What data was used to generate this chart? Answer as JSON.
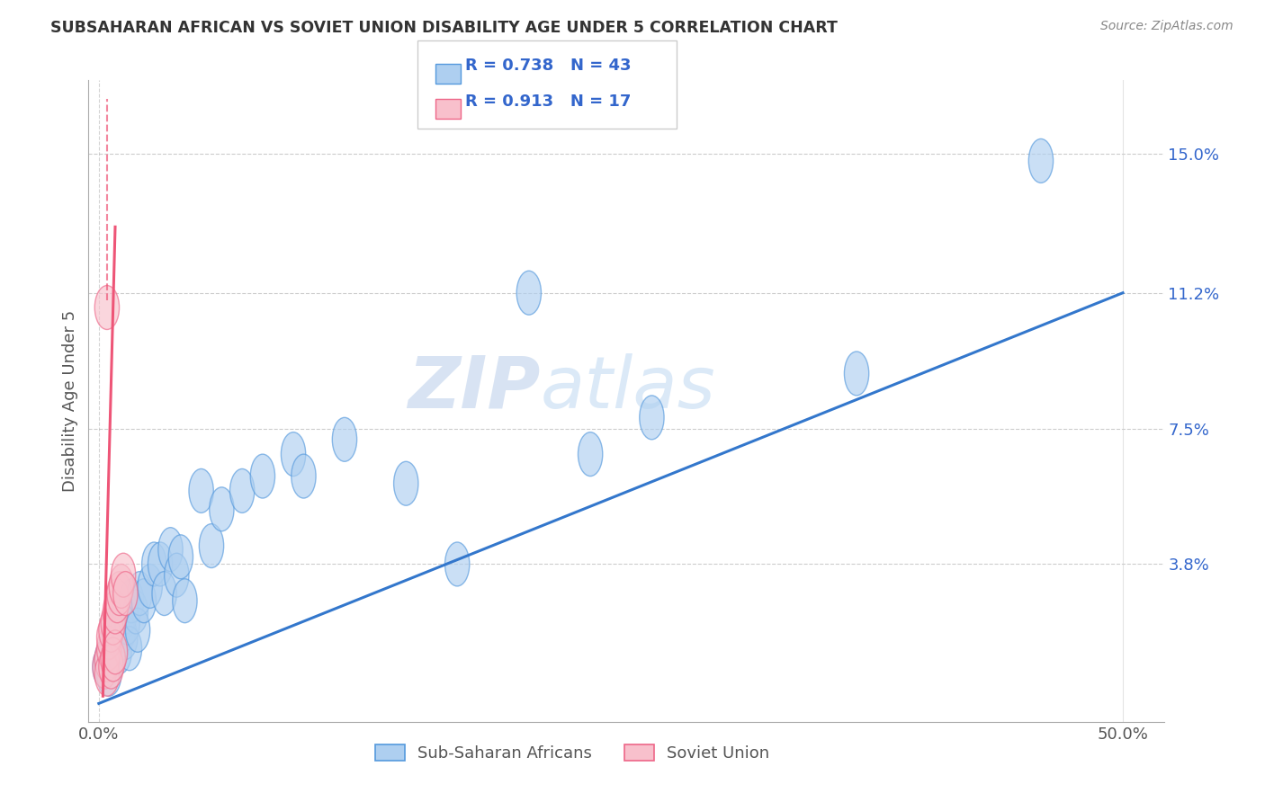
{
  "title": "SUBSAHARAN AFRICAN VS SOVIET UNION DISABILITY AGE UNDER 5 CORRELATION CHART",
  "source": "Source: ZipAtlas.com",
  "ylabel": "Disability Age Under 5",
  "ytick_labels": [
    "",
    "3.8%",
    "7.5%",
    "11.2%",
    "15.0%"
  ],
  "ytick_values": [
    0,
    0.038,
    0.075,
    0.112,
    0.15
  ],
  "xtick_values": [
    0,
    0.1,
    0.2,
    0.3,
    0.4,
    0.5
  ],
  "xtick_labels": [
    "0.0%",
    "",
    "",
    "",
    "",
    "50.0%"
  ],
  "xlim": [
    -0.005,
    0.52
  ],
  "ylim": [
    -0.005,
    0.17
  ],
  "legend_r_blue": "0.738",
  "legend_n_blue": "43",
  "legend_r_pink": "0.913",
  "legend_n_pink": "17",
  "blue_fill": "#aecff0",
  "blue_edge": "#5599dd",
  "pink_fill": "#f8c0cc",
  "pink_edge": "#ee6688",
  "line_blue": "#3377cc",
  "line_pink": "#ee5577",
  "watermark_zip": "ZIP",
  "watermark_atlas": "atlas",
  "blue_points_x": [
    0.003,
    0.004,
    0.005,
    0.006,
    0.007,
    0.007,
    0.008,
    0.009,
    0.01,
    0.011,
    0.012,
    0.013,
    0.013,
    0.014,
    0.015,
    0.016,
    0.018,
    0.019,
    0.02,
    0.022,
    0.025,
    0.027,
    0.03,
    0.032,
    0.035,
    0.038,
    0.04,
    0.042,
    0.05,
    0.055,
    0.06,
    0.07,
    0.08,
    0.095,
    0.1,
    0.12,
    0.15,
    0.175,
    0.21,
    0.24,
    0.27,
    0.37,
    0.46
  ],
  "blue_points_y": [
    0.01,
    0.012,
    0.008,
    0.015,
    0.018,
    0.013,
    0.016,
    0.02,
    0.014,
    0.022,
    0.02,
    0.018,
    0.025,
    0.022,
    0.015,
    0.028,
    0.025,
    0.02,
    0.03,
    0.028,
    0.032,
    0.038,
    0.038,
    0.03,
    0.042,
    0.035,
    0.04,
    0.028,
    0.058,
    0.043,
    0.053,
    0.058,
    0.062,
    0.068,
    0.062,
    0.072,
    0.06,
    0.038,
    0.112,
    0.068,
    0.078,
    0.09,
    0.148
  ],
  "pink_points_x": [
    0.003,
    0.004,
    0.004,
    0.005,
    0.005,
    0.006,
    0.006,
    0.007,
    0.007,
    0.008,
    0.008,
    0.009,
    0.01,
    0.011,
    0.012,
    0.013,
    0.004
  ],
  "pink_points_y": [
    0.01,
    0.012,
    0.008,
    0.015,
    0.018,
    0.01,
    0.02,
    0.012,
    0.022,
    0.014,
    0.025,
    0.028,
    0.03,
    0.032,
    0.035,
    0.03,
    0.108
  ],
  "blue_line_x": [
    0.0,
    0.5
  ],
  "blue_line_y": [
    0.0,
    0.112
  ],
  "pink_line_x": [
    0.002,
    0.008
  ],
  "pink_line_y": [
    0.002,
    0.13
  ]
}
